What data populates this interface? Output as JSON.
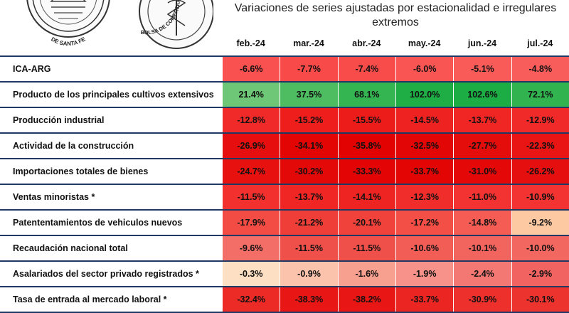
{
  "logos": {
    "seal1_text": "DE SANTA FE",
    "seal2_text": "BOLSA DE COMERCIO DE ROSARIO"
  },
  "title": {
    "line1": "Variaciones de series ajustadas por estacionalidad e irregulares",
    "line2": "extremos"
  },
  "months": [
    "feb.-24",
    "mar.-24",
    "abr.-24",
    "may.-24",
    "jun.-24",
    "jul.-24"
  ],
  "rows": [
    {
      "label": "ICA-ARG",
      "cells": [
        {
          "text": "-6.6%",
          "color": "#f8514f"
        },
        {
          "text": "-7.7%",
          "color": "#f84a48"
        },
        {
          "text": "-7.4%",
          "color": "#f84c4a"
        },
        {
          "text": "-6.0%",
          "color": "#f85553"
        },
        {
          "text": "-5.1%",
          "color": "#f95b59"
        },
        {
          "text": "-4.8%",
          "color": "#f95d5b"
        }
      ]
    },
    {
      "label": "Producto de los principales cultivos extensivos",
      "cells": [
        {
          "text": "21.4%",
          "color": "#6dc777"
        },
        {
          "text": "37.5%",
          "color": "#4ebd62"
        },
        {
          "text": "68.1%",
          "color": "#35b552"
        },
        {
          "text": "102.0%",
          "color": "#1fae46"
        },
        {
          "text": "102.6%",
          "color": "#1cad44"
        },
        {
          "text": "72.1%",
          "color": "#31b450"
        }
      ]
    },
    {
      "label": "Producción industrial",
      "cells": [
        {
          "text": "-12.8%",
          "color": "#f02a28"
        },
        {
          "text": "-15.2%",
          "color": "#ed1e1c"
        },
        {
          "text": "-15.5%",
          "color": "#ec1c1a"
        },
        {
          "text": "-14.5%",
          "color": "#ee2220"
        },
        {
          "text": "-13.7%",
          "color": "#ef2624"
        },
        {
          "text": "-12.9%",
          "color": "#f02a28"
        }
      ]
    },
    {
      "label": "Actividad de la construcción",
      "cells": [
        {
          "text": "-26.9%",
          "color": "#e60e0e"
        },
        {
          "text": "-34.1%",
          "color": "#e30404"
        },
        {
          "text": "-35.8%",
          "color": "#e20202"
        },
        {
          "text": "-32.5%",
          "color": "#e30606"
        },
        {
          "text": "-27.7%",
          "color": "#e50c0c"
        },
        {
          "text": "-22.3%",
          "color": "#e91414"
        }
      ]
    },
    {
      "label": "Importaciones totales de bienes",
      "cells": [
        {
          "text": "-24.7%",
          "color": "#e71110"
        },
        {
          "text": "-30.2%",
          "color": "#e40909"
        },
        {
          "text": "-33.3%",
          "color": "#e30505"
        },
        {
          "text": "-33.7%",
          "color": "#e30404"
        },
        {
          "text": "-31.0%",
          "color": "#e40808"
        },
        {
          "text": "-26.2%",
          "color": "#e60f0f"
        }
      ]
    },
    {
      "label": "Ventas minoristas *",
      "cells": [
        {
          "text": "-11.5%",
          "color": "#f2302e"
        },
        {
          "text": "-13.7%",
          "color": "#ef2624"
        },
        {
          "text": "-14.1%",
          "color": "#ee2422"
        },
        {
          "text": "-12.3%",
          "color": "#f12d2b"
        },
        {
          "text": "-11.0%",
          "color": "#f23331"
        },
        {
          "text": "-10.9%",
          "color": "#f23331"
        }
      ]
    },
    {
      "label": "Patententamientos de vehiculos nuevos",
      "cells": [
        {
          "text": "-17.9%",
          "color": "#f24c44"
        },
        {
          "text": "-21.2%",
          "color": "#ef3d37"
        },
        {
          "text": "-20.1%",
          "color": "#f0423b"
        },
        {
          "text": "-17.2%",
          "color": "#f34f47"
        },
        {
          "text": "-14.8%",
          "color": "#f55c53"
        },
        {
          "text": "-9.2%",
          "color": "#fcc9a2"
        }
      ]
    },
    {
      "label": "Recaudación nacional total",
      "cells": [
        {
          "text": "-9.6%",
          "color": "#f36e66"
        },
        {
          "text": "-11.5%",
          "color": "#f0504a"
        },
        {
          "text": "-11.5%",
          "color": "#f0504a"
        },
        {
          "text": "-10.6%",
          "color": "#f25d56"
        },
        {
          "text": "-10.1%",
          "color": "#f2655e"
        },
        {
          "text": "-10.0%",
          "color": "#f2675f"
        }
      ]
    },
    {
      "label": "Asalariados del sector privado registrados *",
      "cells": [
        {
          "text": "-0.3%",
          "color": "#fde0c3"
        },
        {
          "text": "-0.9%",
          "color": "#fbc3ab"
        },
        {
          "text": "-1.6%",
          "color": "#f7a08f"
        },
        {
          "text": "-1.9%",
          "color": "#f6928a"
        },
        {
          "text": "-2.4%",
          "color": "#f37874"
        },
        {
          "text": "-2.9%",
          "color": "#f16360"
        }
      ]
    },
    {
      "label": "Tasa de entrada al mercado laboral *",
      "cells": [
        {
          "text": "-32.4%",
          "color": "#ec2a26"
        },
        {
          "text": "-38.3%",
          "color": "#e81614"
        },
        {
          "text": "-38.2%",
          "color": "#e81614"
        },
        {
          "text": "-33.7%",
          "color": "#eb2622"
        },
        {
          "text": "-30.9%",
          "color": "#ed302b"
        },
        {
          "text": "-30.1%",
          "color": "#ed332e"
        }
      ]
    }
  ]
}
